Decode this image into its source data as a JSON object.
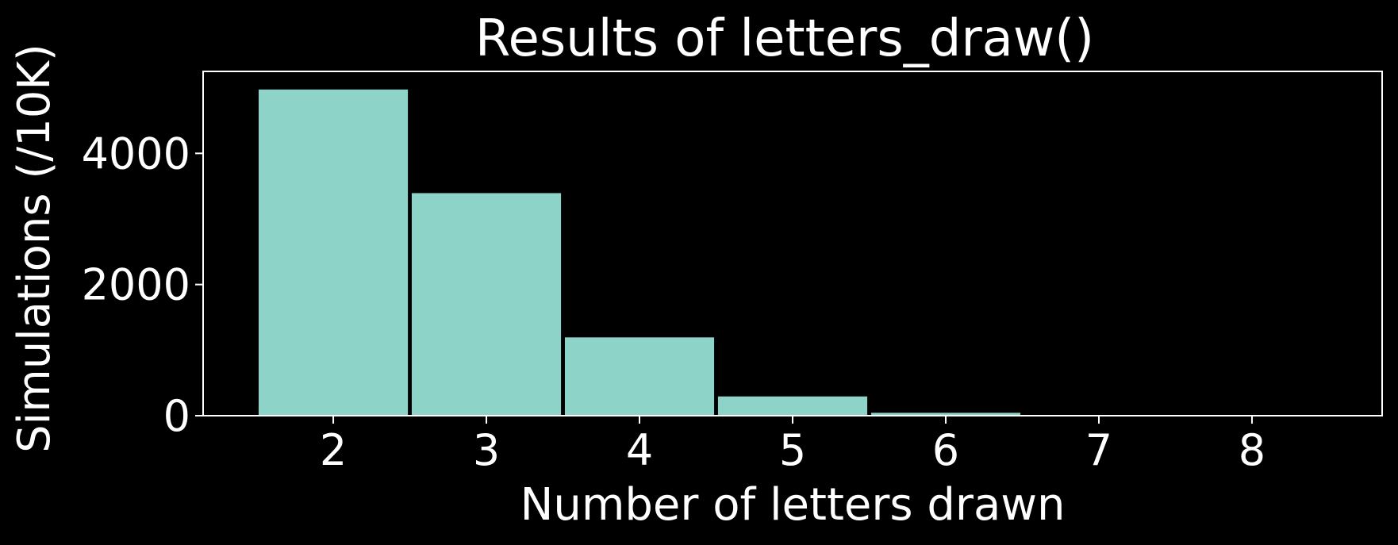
{
  "chart_data": {
    "type": "bar",
    "title": "Results of letters_draw()",
    "xlabel": "Number of letters drawn",
    "ylabel": "Simulations (/10K)",
    "categories": [
      "2",
      "3",
      "4",
      "5",
      "6",
      "7",
      "8"
    ],
    "x": [
      2,
      3,
      4,
      5,
      6,
      7,
      8
    ],
    "values": [
      4980,
      3400,
      1200,
      300,
      50,
      6,
      1
    ],
    "xticks": [
      "2",
      "3",
      "4",
      "5",
      "6",
      "7",
      "8"
    ],
    "yticks": [
      "0",
      "2000",
      "4000"
    ],
    "ytick_values": [
      0,
      2000,
      4000
    ],
    "xlim": [
      1.15,
      8.85
    ],
    "ylim": [
      0,
      5250
    ],
    "bar_width": 0.98,
    "grid": false,
    "colors": {
      "background": "#000000",
      "bar": "#8dd3c7",
      "bar_edge": "#000000",
      "axes": "#ffffff",
      "text": "#ffffff"
    }
  }
}
